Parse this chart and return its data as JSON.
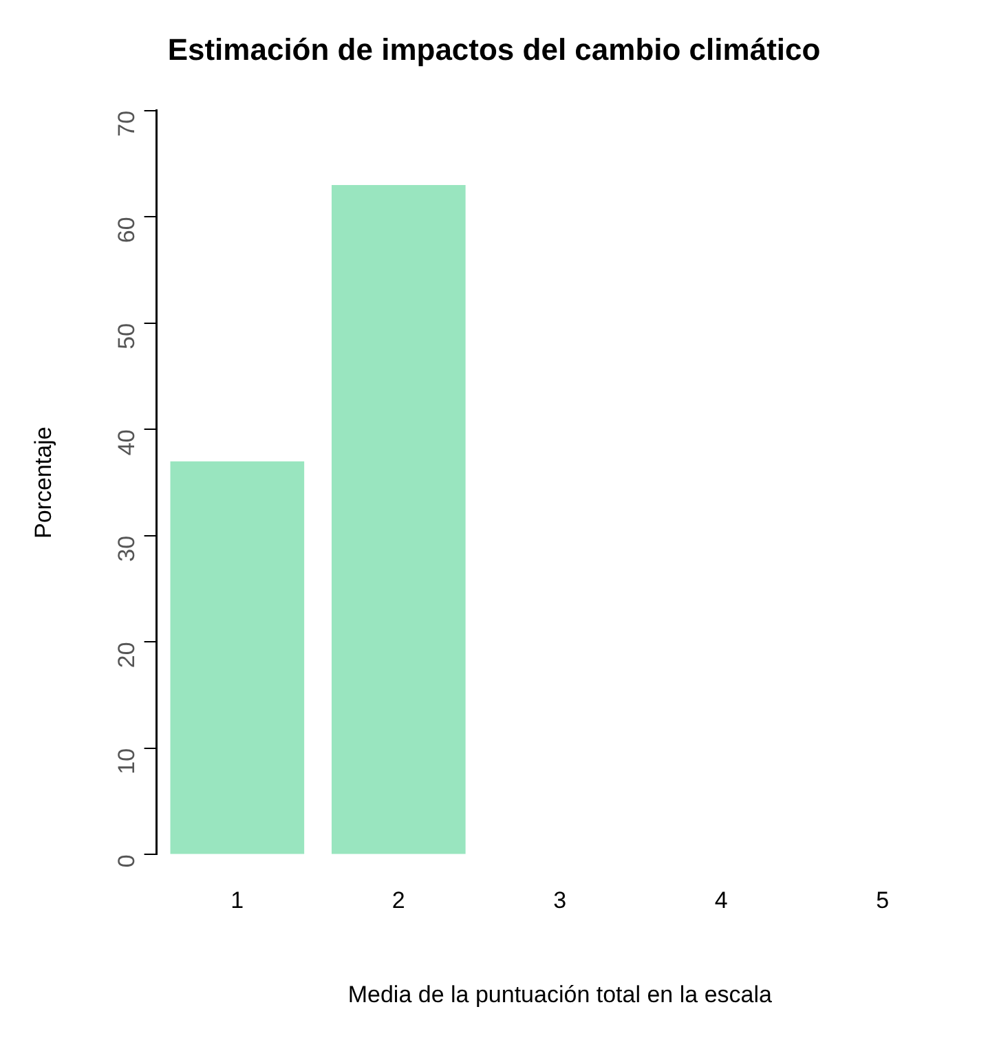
{
  "chart_data": {
    "type": "bar",
    "title": "Estimación de impactos del cambio climático",
    "xlabel": "Media de la puntuación total en la escala",
    "ylabel": "Porcentaje",
    "categories": [
      "1",
      "2",
      "3",
      "4",
      "5"
    ],
    "values": [
      37,
      63,
      0,
      0,
      0
    ],
    "color": "#99e5bf",
    "ylim": [
      0,
      70
    ],
    "yticks": [
      0,
      10,
      20,
      30,
      40,
      50,
      60,
      70
    ],
    "grid": false,
    "legend": false
  }
}
